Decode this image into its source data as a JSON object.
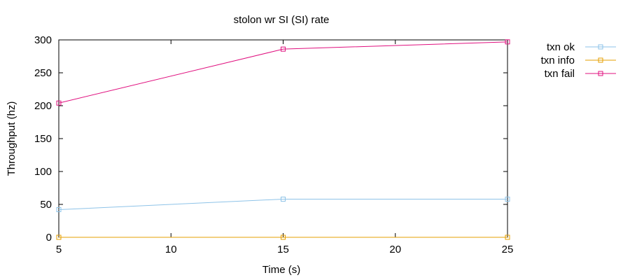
{
  "chart_data": {
    "type": "line",
    "title": "stolon wr SI (SI)  rate",
    "xlabel": "Time (s)",
    "ylabel": "Throughput (hz)",
    "xlim": [
      5,
      25
    ],
    "ylim": [
      0,
      300
    ],
    "xticks": [
      5,
      10,
      15,
      20,
      25
    ],
    "yticks": [
      0,
      50,
      100,
      150,
      200,
      250,
      300
    ],
    "grid": false,
    "legend_position": "outside-top-right",
    "series": [
      {
        "name": "txn ok",
        "color": "#8ec3e8",
        "marker": "square",
        "points": [
          [
            5,
            42
          ],
          [
            15,
            58
          ],
          [
            25,
            58
          ]
        ]
      },
      {
        "name": "txn info",
        "color": "#e69f00",
        "marker": "square",
        "points": [
          [
            5,
            0
          ],
          [
            15,
            0
          ],
          [
            25,
            0
          ]
        ]
      },
      {
        "name": "txn fail",
        "color": "#e0107f",
        "marker": "square",
        "points": [
          [
            5,
            204
          ],
          [
            15,
            286
          ],
          [
            25,
            297
          ]
        ]
      }
    ]
  }
}
